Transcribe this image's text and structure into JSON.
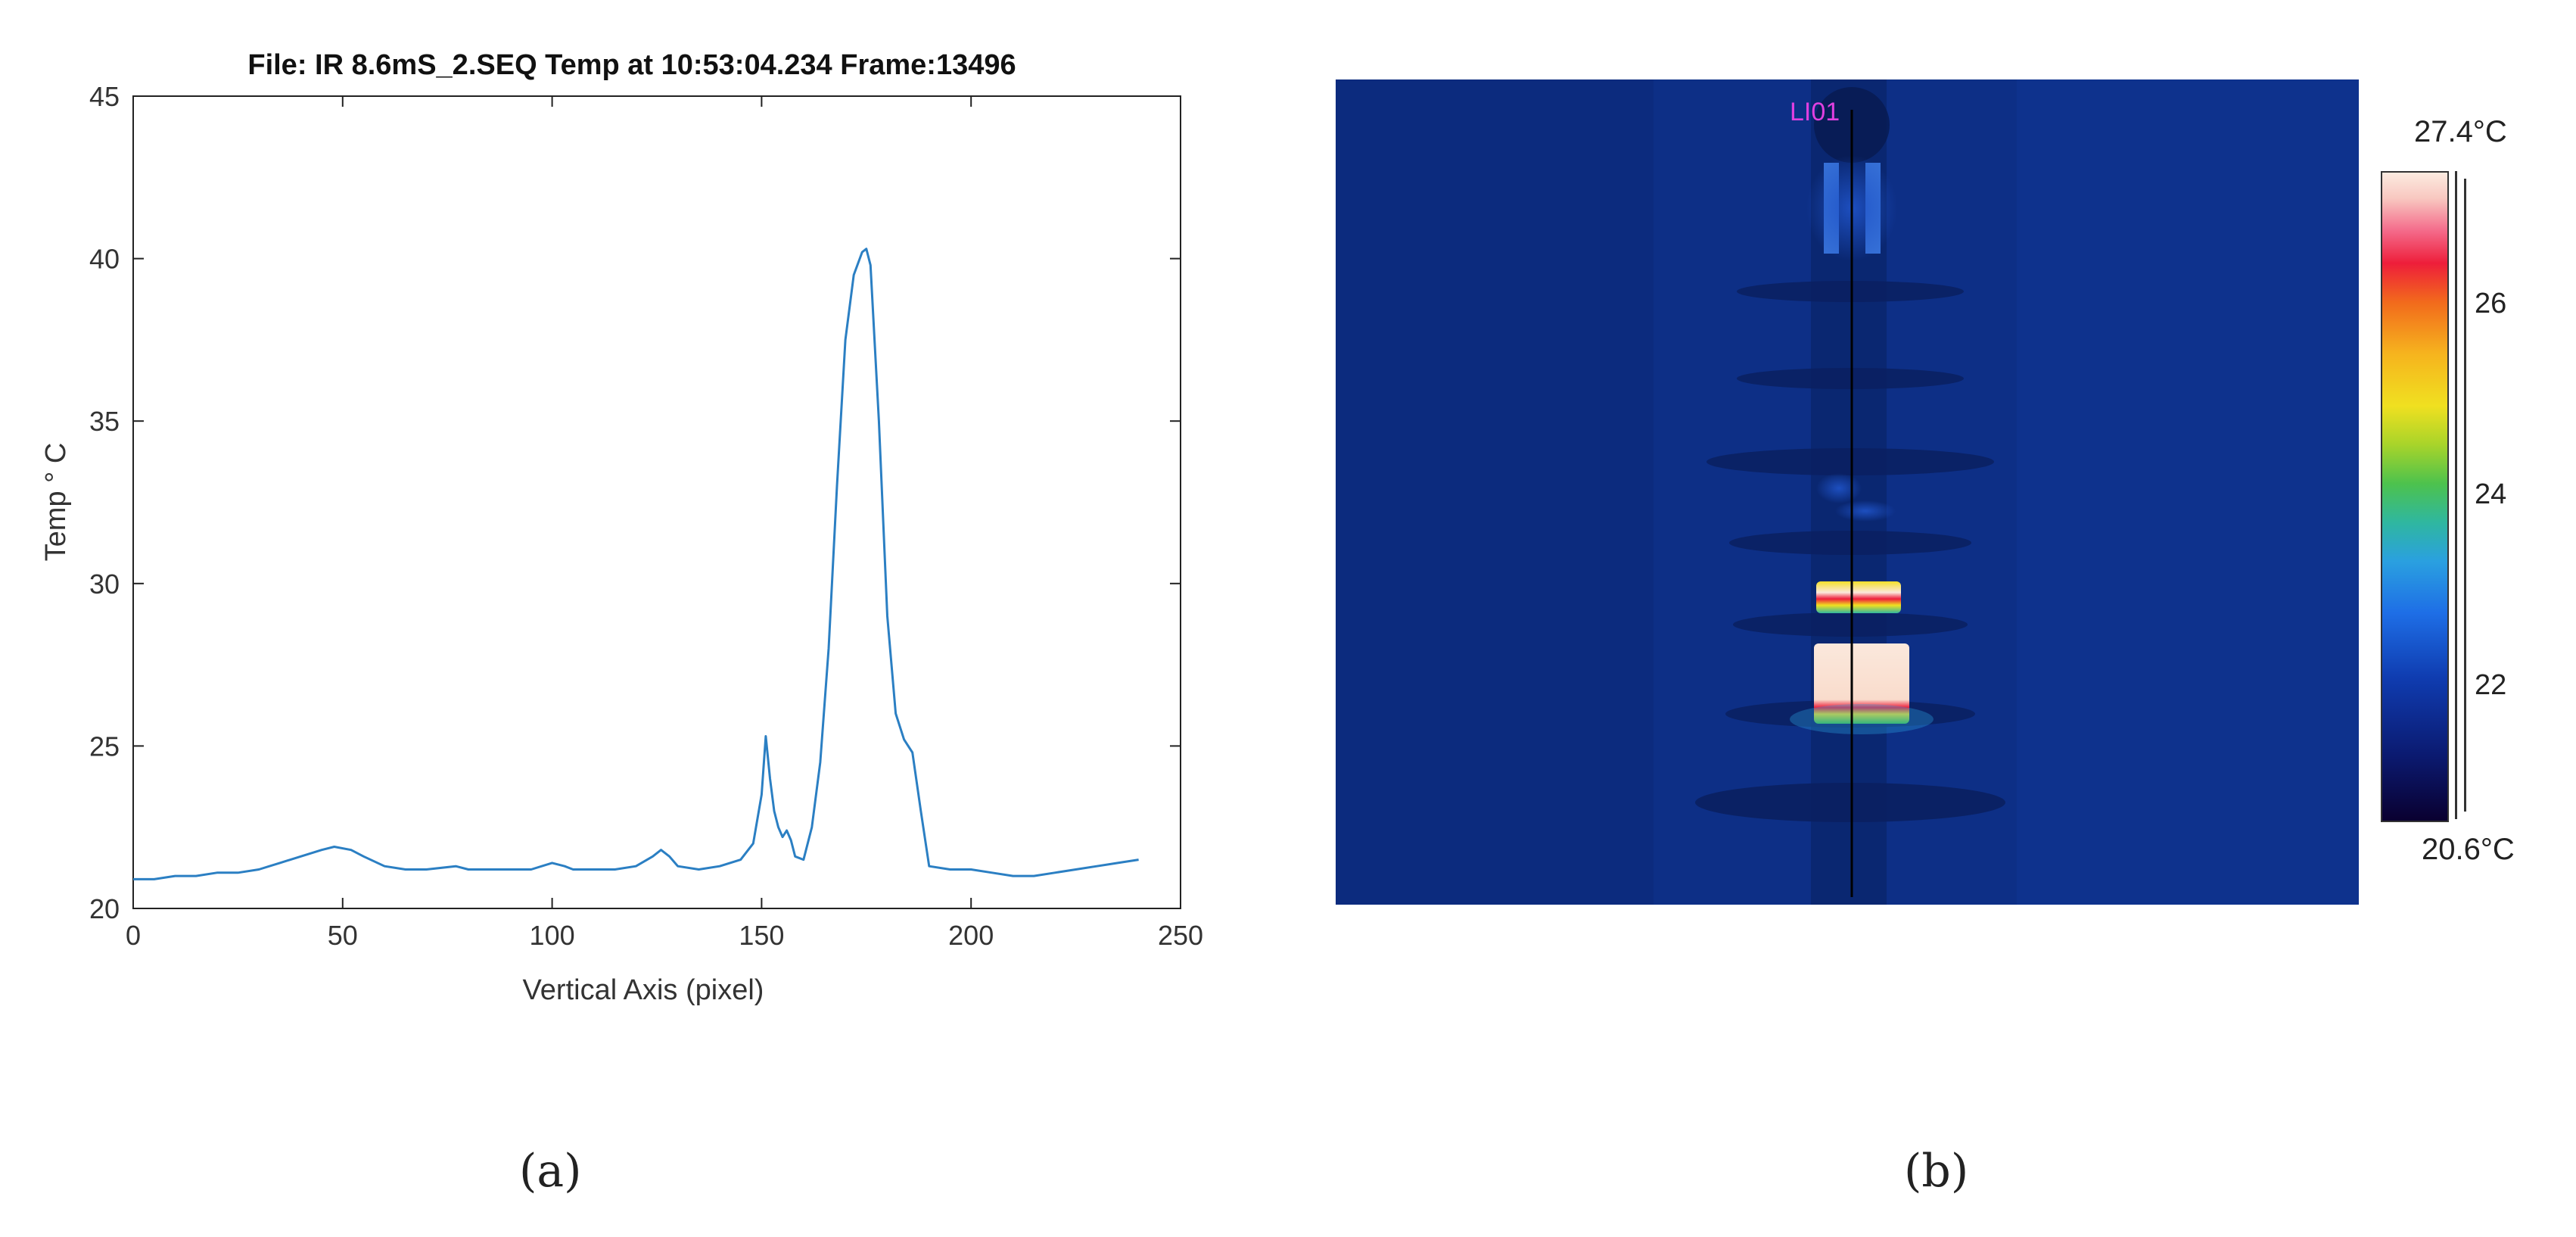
{
  "chart_data": {
    "type": "line",
    "title": "File: IR 8.6mS_2.SEQ Temp at 10:53:04.234 Frame:13496",
    "xlabel": "Vertical Axis (pixel)",
    "ylabel": "Temp  ° C",
    "xlim": [
      0,
      250
    ],
    "ylim": [
      20,
      45
    ],
    "xticks": [
      "0",
      "50",
      "100",
      "150",
      "200",
      "250"
    ],
    "yticks": [
      "20",
      "25",
      "30",
      "35",
      "40",
      "45"
    ],
    "grid": false,
    "line_color": "#2b7fc3",
    "series": [
      {
        "x": [
          0,
          5,
          10,
          15,
          20,
          25,
          30,
          35,
          40,
          45,
          48,
          52,
          55,
          60,
          65,
          70,
          77,
          80,
          85,
          90,
          95,
          100,
          103,
          105,
          110,
          115,
          120,
          124,
          126,
          128,
          130,
          135,
          140,
          145,
          148,
          150,
          151,
          152,
          153,
          154,
          155,
          156,
          157,
          158,
          160,
          162,
          164,
          166,
          168,
          170,
          172,
          174,
          175,
          176,
          178,
          180,
          182,
          184,
          186,
          188,
          190,
          195,
          200,
          205,
          210,
          215,
          220,
          225,
          230,
          235,
          240
        ],
        "y": [
          20.9,
          20.9,
          21.0,
          21.0,
          21.1,
          21.1,
          21.2,
          21.4,
          21.6,
          21.8,
          21.9,
          21.8,
          21.6,
          21.3,
          21.2,
          21.2,
          21.3,
          21.2,
          21.2,
          21.2,
          21.2,
          21.4,
          21.3,
          21.2,
          21.2,
          21.2,
          21.3,
          21.6,
          21.8,
          21.6,
          21.3,
          21.2,
          21.3,
          21.5,
          22.0,
          23.5,
          25.3,
          24.0,
          23.0,
          22.5,
          22.2,
          22.4,
          22.1,
          21.6,
          21.5,
          22.5,
          24.5,
          28.0,
          33.0,
          37.5,
          39.5,
          40.2,
          40.3,
          39.8,
          35.0,
          29.0,
          26.0,
          25.2,
          24.8,
          23.0,
          21.3,
          21.2,
          21.2,
          21.1,
          21.0,
          21.0,
          21.1,
          21.2,
          21.3,
          21.4,
          21.5
        ]
      }
    ]
  },
  "thermal_image": {
    "line_label": "LI01",
    "colorbar": {
      "max_label": "27.4°C",
      "min_label": "20.6°C",
      "ticks": [
        "26",
        "24",
        "22"
      ],
      "tick_values": [
        26,
        24,
        22
      ],
      "range": [
        20.6,
        27.4
      ]
    }
  },
  "captions": {
    "a": "(a)",
    "b": "(b)"
  }
}
